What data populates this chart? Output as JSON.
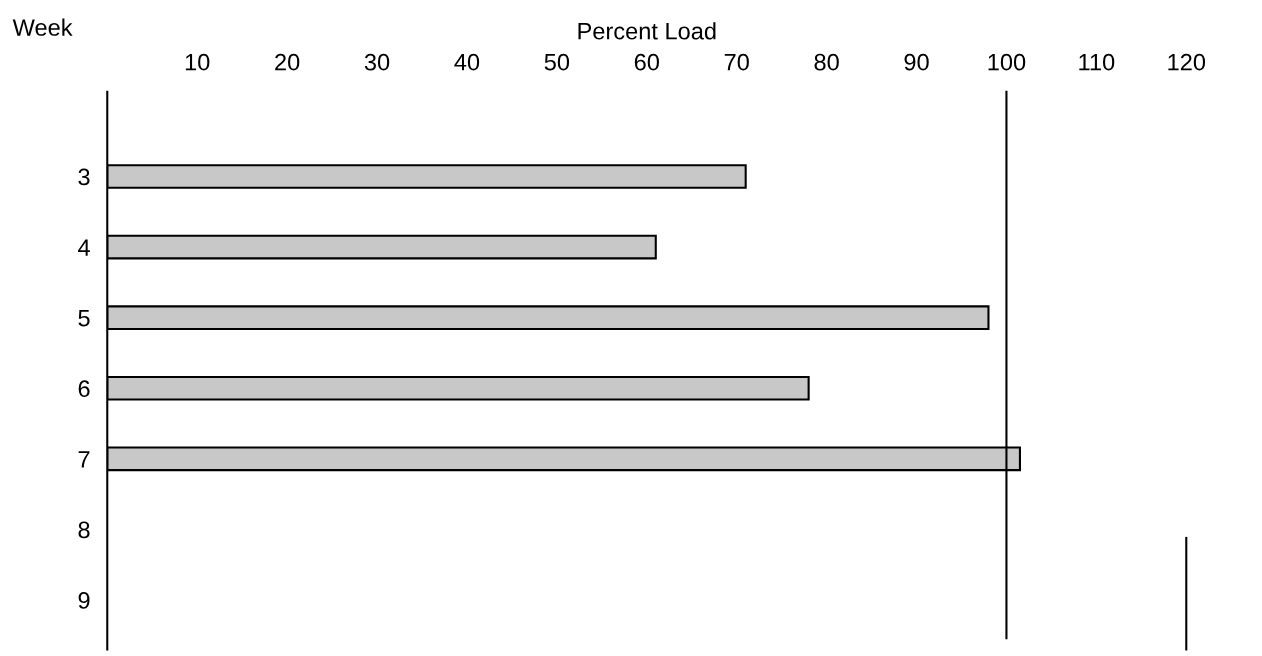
{
  "chart_data": {
    "type": "bar",
    "orientation": "horizontal",
    "xlabel": "Percent Load",
    "ylabel": "Week",
    "categories": [
      "3",
      "4",
      "5",
      "6",
      "7",
      "8",
      "9"
    ],
    "values": [
      71,
      61,
      98,
      78,
      101.5,
      null,
      null
    ],
    "color": "#c8c8c8",
    "xlim": [
      0,
      120
    ],
    "xticks": [
      10,
      20,
      30,
      40,
      50,
      60,
      70,
      80,
      90,
      100,
      110,
      120
    ],
    "ref_lines": [
      {
        "axis": "x",
        "value": 100,
        "color": "#000000"
      },
      {
        "axis": "x",
        "value": 120,
        "color": "#000000"
      }
    ],
    "grid": false,
    "legend": false
  }
}
